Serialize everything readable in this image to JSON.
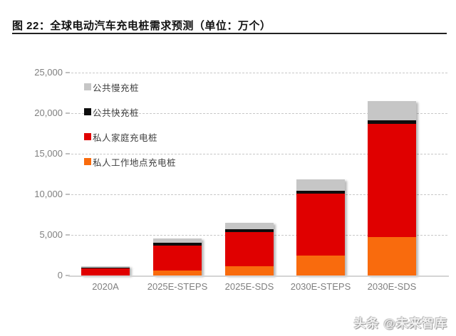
{
  "figure": {
    "title": "图 22：全球电动汽车充电桩需求预测（单位：万个）",
    "watermark": "头条 @未来智库"
  },
  "chart_data": {
    "type": "bar",
    "stacked": true,
    "title": "全球电动汽车充电桩需求预测",
    "unit": "万个",
    "categories": [
      "2020A",
      "2025E-STEPS",
      "2025E-SDS",
      "2030E-STEPS",
      "2030E-SDS"
    ],
    "series": [
      {
        "name": "私人工作地点充电桩",
        "color": "#F96B0D",
        "values": [
          30,
          600,
          1150,
          2450,
          4700
        ]
      },
      {
        "name": "私人家庭充电桩",
        "color": "#E00000",
        "values": [
          850,
          3100,
          4200,
          7600,
          14000
        ]
      },
      {
        "name": "公共快充桩",
        "color": "#0D0D0D",
        "values": [
          50,
          350,
          350,
          400,
          450
        ]
      },
      {
        "name": "公共慢充桩",
        "color": "#C6C6C6",
        "values": [
          200,
          550,
          800,
          1400,
          2300
        ]
      }
    ],
    "totals": [
      1130,
      4600,
      6500,
      11850,
      21450
    ],
    "legend": {
      "position": "top-left-inside",
      "items": [
        {
          "label": "公共慢充桩",
          "color": "#C6C6C6"
        },
        {
          "label": "公共快充桩",
          "color": "#0D0D0D"
        },
        {
          "label": "私人家庭充电桩",
          "color": "#E00000"
        },
        {
          "label": "私人工作地点充电桩",
          "color": "#F96B0D"
        }
      ]
    },
    "xlabel": "",
    "ylabel": "",
    "ylim": [
      0,
      25000
    ],
    "y_axis": {
      "ticks": [
        {
          "label": "25,000",
          "value": 25000
        },
        {
          "label": "20,000",
          "value": 20000
        },
        {
          "label": "15,000",
          "value": 15000
        },
        {
          "label": "10,000",
          "value": 10000
        },
        {
          "label": "5,000",
          "value": 5000
        },
        {
          "label": "0",
          "value": 0
        }
      ]
    },
    "grid": "horizontal-dashed"
  }
}
